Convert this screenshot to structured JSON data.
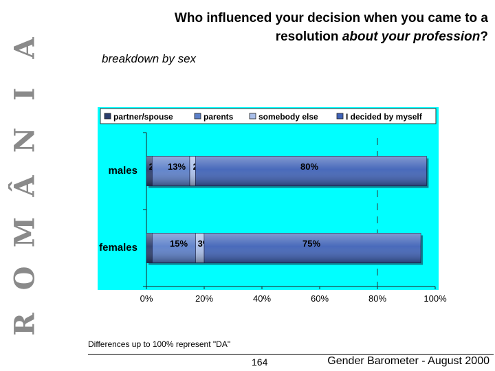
{
  "side_text": [
    "R",
    "O",
    "M",
    "Â",
    "N",
    "I",
    "A"
  ],
  "header": {
    "title_line1": "Who influenced your decision when you came to a",
    "title_line2_plain": "resolution ",
    "title_line2_italic": "about your profession",
    "title_line2_end": "?",
    "subtitle": "breakdown by sex"
  },
  "chart_data": {
    "type": "bar",
    "orientation": "horizontal",
    "stacked": true,
    "categories": [
      "males",
      "females"
    ],
    "series": [
      {
        "name": "partner/spouse",
        "values": [
          2,
          2
        ],
        "color": "#2a3c6c"
      },
      {
        "name": "parents",
        "values": [
          13,
          15
        ],
        "color": "#5b7fc9"
      },
      {
        "name": "somebody else",
        "values": [
          2,
          3
        ],
        "color": "#a9bee9"
      },
      {
        "name": "I decided by myself",
        "values": [
          80,
          75
        ],
        "color": "#3f62b7"
      }
    ],
    "xticks": [
      "0%",
      "20%",
      "40%",
      "60%",
      "80%",
      "100%"
    ],
    "xlim": [
      0,
      100
    ],
    "background": "#00ffff",
    "legend_position": "top"
  },
  "footer": {
    "note": "Differences up to 100% represent \"DA\"",
    "page": "164",
    "source": "Gender Barometer - August 2000"
  }
}
